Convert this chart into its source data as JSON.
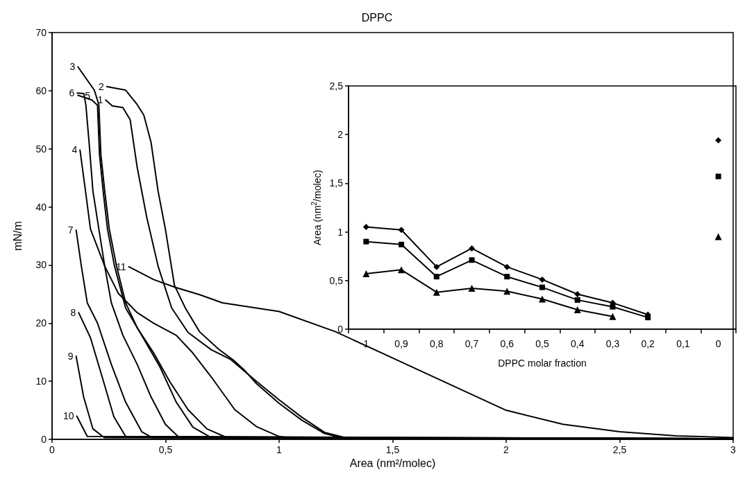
{
  "chart_data": [
    {
      "type": "line",
      "title": "DPPC",
      "xlabel": "Area (nm²/molec)",
      "ylabel": "mN/m",
      "xlim": [
        0,
        3
      ],
      "ylim": [
        0,
        70
      ],
      "xticks": [
        0,
        {
          "value": 0.5,
          "label": "0,5"
        },
        1,
        {
          "value": 1.5,
          "label": "1,5"
        },
        2,
        {
          "value": 2.5,
          "label": "2,5"
        },
        3
      ],
      "yticks": [
        0,
        10,
        20,
        30,
        40,
        50,
        60,
        70
      ],
      "grid": false,
      "legend": false,
      "marker": "none",
      "line_style": "solid",
      "series": [
        {
          "name": "1",
          "color": "#000000",
          "x": [
            0.236,
            0.265,
            0.312,
            0.344,
            0.375,
            0.416,
            0.467,
            0.527,
            0.599,
            0.702,
            0.785,
            0.9,
            1.0,
            1.1,
            1.2,
            1.3,
            3
          ],
          "values": [
            58.4,
            57.4,
            57.1,
            55,
            46.8,
            38.4,
            29.8,
            22.6,
            18.4,
            15.4,
            13.8,
            10,
            6.8,
            3.8,
            1.2,
            0.2,
            0.1
          ]
        },
        {
          "name": "2",
          "color": "#000000",
          "x": [
            0.241,
            0.324,
            0.375,
            0.404,
            0.436,
            0.467,
            0.499,
            0.539,
            0.587,
            0.65,
            0.734,
            0.8,
            0.85,
            0.9,
            1.0,
            1.1,
            1.2,
            1.28,
            3
          ],
          "values": [
            60.7,
            60.1,
            57.6,
            55.8,
            51.1,
            42.7,
            36.2,
            26.5,
            22.6,
            18.5,
            15.5,
            13.6,
            11.8,
            9.6,
            6.2,
            3.3,
            1.0,
            0.2,
            0.1
          ]
        },
        {
          "name": "3",
          "color": "#000000",
          "x": [
            0.114,
            0.186,
            0.206,
            0.215,
            0.232,
            0.252,
            0.284,
            0.324,
            0.375,
            0.447,
            0.519,
            0.599,
            0.682,
            0.77,
            3
          ],
          "values": [
            64.1,
            60.1,
            57.6,
            49,
            42.7,
            36.2,
            29.8,
            23.5,
            19.2,
            14.9,
            9.9,
            5.1,
            1.8,
            0.3,
            0.1
          ]
        },
        {
          "name": "4",
          "color": "#000000",
          "x": [
            0.123,
            0.149,
            0.169,
            0.232,
            0.292,
            0.375,
            0.447,
            0.547,
            0.619,
            0.702,
            0.805,
            0.9,
            1.0,
            1.05,
            3
          ],
          "values": [
            49.8,
            42.2,
            36.2,
            29.8,
            25.1,
            21.8,
            20.0,
            17.9,
            14.9,
            10.7,
            5.1,
            2.2,
            0.5,
            0.2,
            0.1
          ]
        },
        {
          "name": "5",
          "color": "#000000",
          "x": [
            0.114,
            0.175,
            0.2,
            0.209,
            0.225,
            0.244,
            0.275,
            0.324,
            0.395,
            0.476,
            0.547,
            0.62,
            0.7,
            3
          ],
          "values": [
            59.2,
            58.4,
            57.5,
            49,
            42.7,
            36.2,
            29.8,
            22.6,
            17.9,
            12.4,
            6.4,
            2.1,
            0.3,
            0.1
          ]
        },
        {
          "name": "6",
          "color": "#000000",
          "x": [
            0.111,
            0.14,
            0.149,
            0.163,
            0.18,
            0.206,
            0.232,
            0.261,
            0.312,
            0.375,
            0.436,
            0.499,
            0.56,
            3
          ],
          "values": [
            59.6,
            59.5,
            57.5,
            51.1,
            42.7,
            36.2,
            29.8,
            23.5,
            17.9,
            12.9,
            7.3,
            2.6,
            0.3,
            0.1
          ]
        },
        {
          "name": "7",
          "color": "#000000",
          "x": [
            0.106,
            0.129,
            0.155,
            0.2,
            0.261,
            0.324,
            0.395,
            0.44,
            3
          ],
          "values": [
            36.0,
            29.8,
            23.5,
            20.0,
            12.9,
            6.4,
            1.3,
            0.3,
            0.1
          ]
        },
        {
          "name": "8",
          "color": "#000000",
          "x": [
            0.117,
            0.169,
            0.221,
            0.272,
            0.324,
            3
          ],
          "values": [
            21.8,
            17.5,
            10.7,
            3.9,
            0.5,
            0.1
          ]
        },
        {
          "name": "9",
          "color": "#000000",
          "x": [
            0.106,
            0.139,
            0.18,
            0.23,
            3
          ],
          "values": [
            14.3,
            7.3,
            1.8,
            0.3,
            0.1
          ]
        },
        {
          "name": "10",
          "color": "#000000",
          "x": [
            0.109,
            0.155,
            3
          ],
          "values": [
            4,
            0.5,
            0.1
          ]
        },
        {
          "name": "11",
          "color": "#000000",
          "x": [
            0.338,
            0.447,
            0.539,
            0.65,
            0.75,
            1.0,
            1.25,
            1.5,
            1.75,
            2.0,
            2.25,
            2.5,
            2.75,
            3
          ],
          "values": [
            29.7,
            27.5,
            26.2,
            24.9,
            23.5,
            22,
            18.5,
            14,
            9.5,
            5,
            2.6,
            1.3,
            0.6,
            0.3
          ]
        }
      ]
    },
    {
      "type": "line",
      "xlabel": "DPPC molar fraction",
      "ylabel": "Area (nm$^{2}$/molec)",
      "categories": [
        "1",
        "0,9",
        "0,8",
        "0,7",
        "0,6",
        "0,5",
        "0,4",
        "0,3",
        "0,2",
        "0,1",
        "0"
      ],
      "ylim": [
        0,
        2.5
      ],
      "yticks": [
        0,
        {
          "value": 0.5,
          "label": "0,5"
        },
        1,
        {
          "value": 1.5,
          "label": "1,5"
        },
        2,
        {
          "value": 2.5,
          "label": "2,5"
        }
      ],
      "grid": false,
      "legend": false,
      "line_style": "solid",
      "series": [
        {
          "color": "#000000",
          "marker": "diamond",
          "values": [
            1.05,
            1.02,
            0.64,
            0.83,
            0.64,
            0.51,
            0.36,
            0.27,
            0.15,
            null,
            1.94
          ]
        },
        {
          "color": "#000000",
          "marker": "square",
          "values": [
            0.9,
            0.87,
            0.54,
            0.71,
            0.54,
            0.43,
            0.3,
            0.23,
            0.12,
            null,
            1.57
          ]
        },
        {
          "color": "#000000",
          "marker": "triangle",
          "values": [
            0.57,
            0.61,
            0.38,
            0.42,
            0.39,
            0.31,
            0.2,
            0.13,
            null,
            null,
            0.95
          ]
        }
      ]
    }
  ]
}
